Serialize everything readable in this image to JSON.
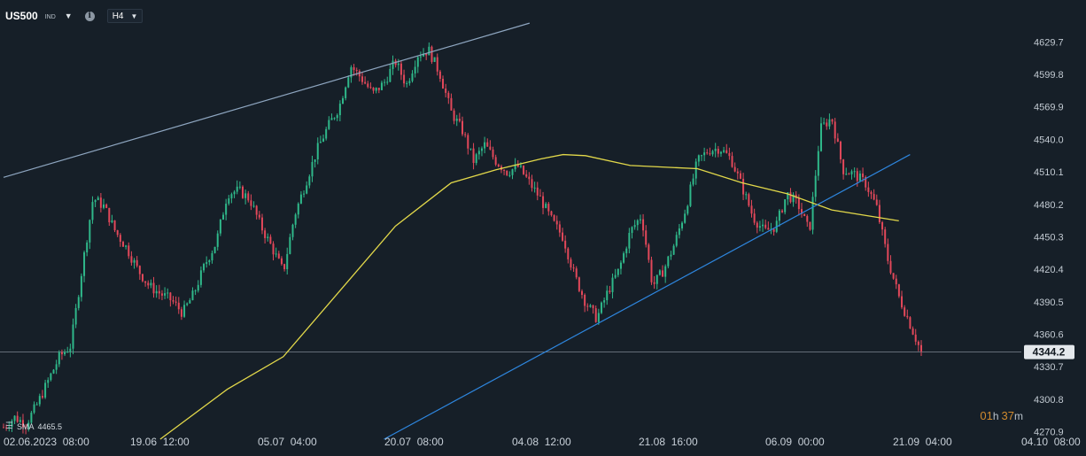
{
  "header": {
    "symbol": "US500",
    "symbol_sub": "IND",
    "timeframe": "H4"
  },
  "indicator": {
    "label": "SMA",
    "value": "4465.5",
    "color": "#e2d84a"
  },
  "countdown": {
    "hours": "01",
    "hours_unit": "h",
    "minutes": "37",
    "minutes_unit": "m"
  },
  "colors": {
    "background": "#161f28",
    "up_candle": "#2fb88a",
    "down_candle": "#e2485a",
    "trend_upper": "#8ea6c0",
    "trend_lower": "#2e86de",
    "sma": "#e2d84a",
    "price_label_bg": "#e4e8ec"
  },
  "chart_data": {
    "type": "candlestick",
    "instrument": "US500",
    "timeframe": "H4",
    "y_ticks": [
      "4629.7",
      "4599.8",
      "4569.9",
      "4540.0",
      "4510.1",
      "4480.2",
      "4450.3",
      "4420.4",
      "4390.5",
      "4360.6",
      "4330.7",
      "4300.8",
      "4270.9"
    ],
    "x_ticks": [
      "02.06.2023  08:00",
      "19.06  12:00",
      "05.07  04:00",
      "20.07  08:00",
      "04.08  12:00",
      "21.08  16:00",
      "06.09  00:00",
      "21.09  04:00",
      "04.10  08:00"
    ],
    "current_price": "4344.2",
    "ylim": [
      4264,
      4652
    ],
    "x_range": [
      0,
      82
    ],
    "price_path": [
      [
        0,
        4275
      ],
      [
        1,
        4284
      ],
      [
        2,
        4278
      ],
      [
        3,
        4296
      ],
      [
        4,
        4318
      ],
      [
        5,
        4340
      ],
      [
        6,
        4350
      ],
      [
        7,
        4420
      ],
      [
        8,
        4486
      ],
      [
        9,
        4478
      ],
      [
        10,
        4455
      ],
      [
        11,
        4440
      ],
      [
        12,
        4420
      ],
      [
        13,
        4405
      ],
      [
        14,
        4398
      ],
      [
        15,
        4392
      ],
      [
        16,
        4380
      ],
      [
        17,
        4398
      ],
      [
        18,
        4425
      ],
      [
        19,
        4445
      ],
      [
        20,
        4490
      ],
      [
        21,
        4493
      ],
      [
        22,
        4485
      ],
      [
        23,
        4460
      ],
      [
        24,
        4440
      ],
      [
        25,
        4418
      ],
      [
        26,
        4470
      ],
      [
        27,
        4500
      ],
      [
        28,
        4530
      ],
      [
        29,
        4552
      ],
      [
        30,
        4570
      ],
      [
        31,
        4608
      ],
      [
        32,
        4596
      ],
      [
        33,
        4582
      ],
      [
        34,
        4592
      ],
      [
        35,
        4612
      ],
      [
        36,
        4590
      ],
      [
        37,
        4618
      ],
      [
        38,
        4622
      ],
      [
        39,
        4600
      ],
      [
        40,
        4565
      ],
      [
        41,
        4548
      ],
      [
        42,
        4520
      ],
      [
        43,
        4535
      ],
      [
        44,
        4520
      ],
      [
        45,
        4510
      ],
      [
        46,
        4515
      ],
      [
        47,
        4500
      ],
      [
        48,
        4485
      ],
      [
        49,
        4465
      ],
      [
        50,
        4450
      ],
      [
        51,
        4415
      ],
      [
        52,
        4390
      ],
      [
        53,
        4375
      ],
      [
        54,
        4400
      ],
      [
        55,
        4420
      ],
      [
        56,
        4455
      ],
      [
        57,
        4470
      ],
      [
        58,
        4405
      ],
      [
        59,
        4420
      ],
      [
        60,
        4445
      ],
      [
        61,
        4478
      ],
      [
        62,
        4520
      ],
      [
        63,
        4530
      ],
      [
        64,
        4532
      ],
      [
        65,
        4522
      ],
      [
        66,
        4496
      ],
      [
        67,
        4468
      ],
      [
        68,
        4455
      ],
      [
        69,
        4460
      ],
      [
        70,
        4490
      ],
      [
        71,
        4480
      ],
      [
        72,
        4455
      ],
      [
        73,
        4550
      ],
      [
        74,
        4560
      ],
      [
        75,
        4512
      ],
      [
        76,
        4508
      ],
      [
        77,
        4500
      ],
      [
        78,
        4478
      ],
      [
        79,
        4430
      ],
      [
        80,
        4395
      ],
      [
        81,
        4370
      ],
      [
        82,
        4344
      ]
    ],
    "sma_points": [
      [
        14,
        4264
      ],
      [
        20,
        4310
      ],
      [
        25,
        4340
      ],
      [
        30,
        4400
      ],
      [
        35,
        4460
      ],
      [
        40,
        4500
      ],
      [
        44,
        4512
      ],
      [
        48,
        4522
      ],
      [
        50,
        4526
      ],
      [
        52,
        4525
      ],
      [
        56,
        4516
      ],
      [
        62,
        4513
      ],
      [
        66,
        4500
      ],
      [
        70,
        4490
      ],
      [
        74,
        4475
      ],
      [
        80,
        4465
      ]
    ],
    "trendlines": [
      {
        "name": "upper",
        "from": [
          0,
          4505
        ],
        "to": [
          47,
          4647
        ]
      },
      {
        "name": "lower",
        "from": [
          34,
          4264
        ],
        "to": [
          81,
          4526
        ]
      }
    ]
  }
}
